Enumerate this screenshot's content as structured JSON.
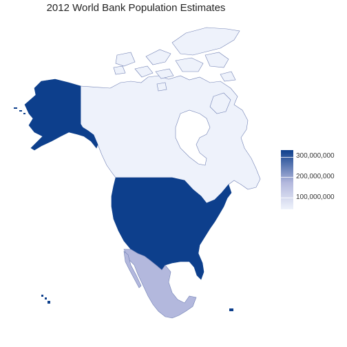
{
  "title": "2012 World Bank Population Estimates",
  "colors": {
    "high": "#0d3f8c",
    "mid": "#b3b8dd",
    "low": "#eef2fb",
    "border": "#6f7fb3"
  },
  "countries": [
    {
      "name": "Canada",
      "population": 34880000
    },
    {
      "name": "United States",
      "population": 313900000
    },
    {
      "name": "Mexico",
      "population": 120800000
    },
    {
      "name": "Alaska (United States)",
      "population": 313900000
    }
  ],
  "legend": {
    "labels": [
      "300,000,000",
      "200,000,000",
      "100,000,000"
    ]
  }
}
